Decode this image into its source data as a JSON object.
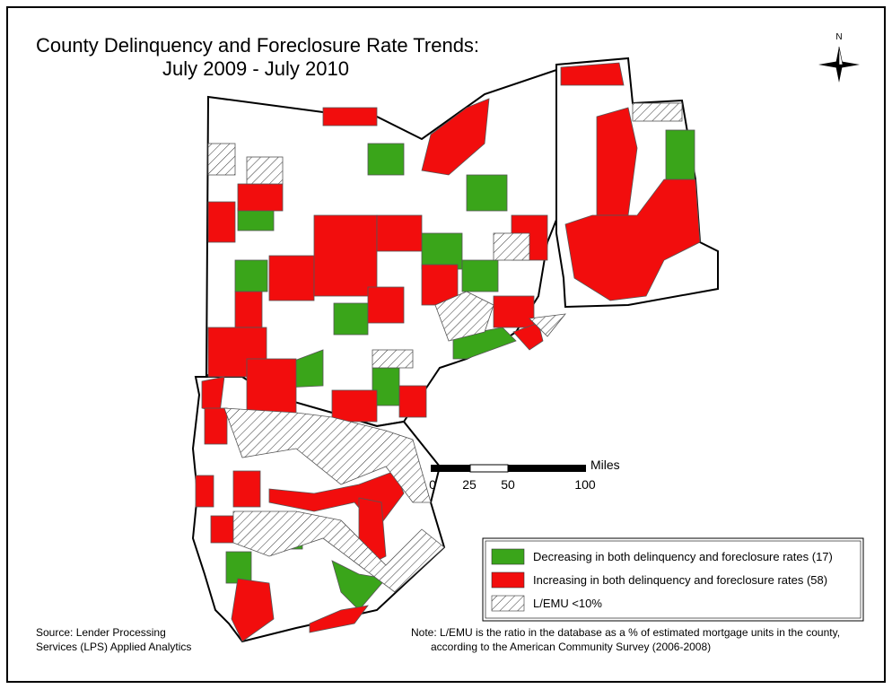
{
  "title": {
    "line1": "County Delinquency and Foreclosure Rate Trends:",
    "line2": "July 2009 - July 2010"
  },
  "compass": {
    "label": "N"
  },
  "scale_bar": {
    "unit": "Miles",
    "labels": [
      "0",
      "25",
      "50",
      "100"
    ]
  },
  "legend": {
    "items": [
      {
        "label": "Decreasing in both delinquency and foreclosure rates (17)",
        "color": "#3aa51a"
      },
      {
        "label": "Increasing in both delinquency and foreclosure rates (58)",
        "color": "#f20d0d"
      },
      {
        "label": "L/EMU <10%",
        "color": "hatch"
      }
    ]
  },
  "source": {
    "line1": "Source: Lender Processing",
    "line2": "Services (LPS) Applied Analytics"
  },
  "note": {
    "line1": "Note: L/EMU is the ratio in the database as a % of estimated mortgage units in the county,",
    "line2": "according to the American Community Survey (2006-2008)"
  }
}
